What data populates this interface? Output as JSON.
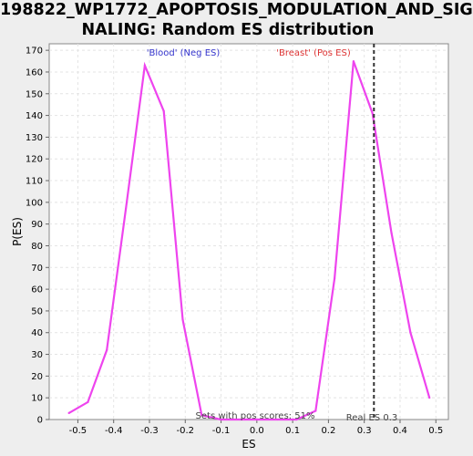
{
  "chart_data": {
    "type": "line",
    "title_lines": [
      "198822_WP1772_APOPTOSIS_MODULATION_AND_SIG",
      "NALING: Random ES distribution"
    ],
    "xlabel": "ES",
    "ylabel": "P(ES)",
    "xlim": [
      -0.58,
      0.535
    ],
    "ylim": [
      0,
      173
    ],
    "x_ticks": [
      -0.5,
      -0.4,
      -0.3,
      -0.2,
      -0.1,
      0.0,
      0.1,
      0.2,
      0.3,
      0.4,
      0.5
    ],
    "x_tick_labels": [
      "-0.5",
      "-0.4",
      "-0.3",
      "-0.2",
      "-0.1",
      "0.0",
      "0.1",
      "0.2",
      "0.3",
      "0.4",
      "0.5"
    ],
    "y_ticks": [
      0,
      10,
      20,
      30,
      40,
      50,
      60,
      70,
      80,
      90,
      100,
      110,
      120,
      130,
      140,
      150,
      160,
      170
    ],
    "grid": true,
    "series_color": "#ee44ee",
    "series": [
      {
        "x": [
          -0.525,
          -0.472,
          -0.419,
          -0.366,
          -0.313,
          -0.26,
          -0.207,
          -0.154,
          -0.101,
          -0.048,
          0.005,
          0.058,
          0.111,
          0.164,
          0.217,
          0.27,
          0.323,
          0.376,
          0.429,
          0.482
        ],
        "values": [
          3,
          8,
          32,
          97,
          163,
          142,
          46,
          2,
          0,
          0,
          0,
          0,
          0,
          4,
          65,
          165,
          141,
          86,
          40,
          10
        ]
      }
    ],
    "annotations": {
      "neg_label": "'Blood' (Neg ES)",
      "neg_color": "#3333cc",
      "pos_label": "'Breast' (Pos ES)",
      "pos_color": "#dd3333",
      "pos_scores_text": "Sets with pos scores: 51%",
      "real_es_text": "Real ES 0.3",
      "real_es_value": 0.327
    }
  }
}
